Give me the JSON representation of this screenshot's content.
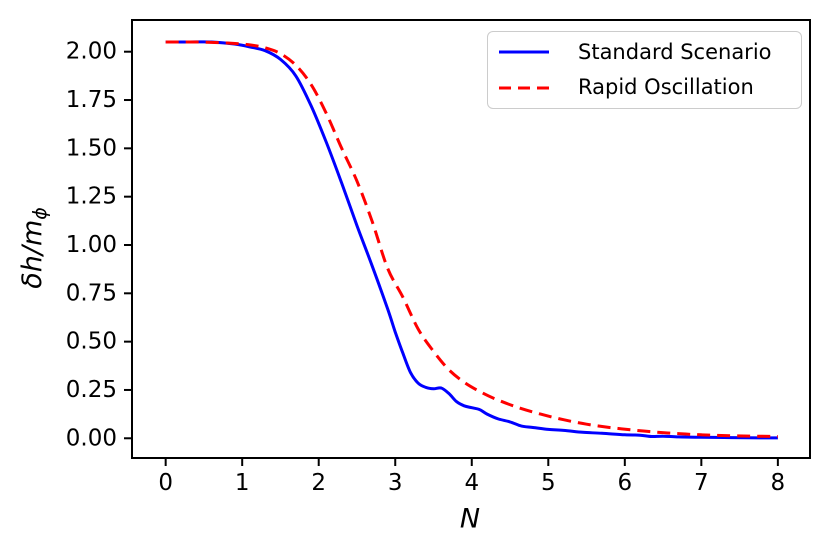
{
  "chart_data": {
    "type": "line",
    "title": "",
    "xlabel": "N",
    "ylabel": "δh/m_ϕ",
    "ylabel_parts": {
      "main": "δh/m",
      "sub": "ϕ"
    },
    "xlim": [
      -0.44,
      8.42
    ],
    "ylim": [
      -0.102,
      2.164
    ],
    "grid": false,
    "axis_color": "#000000",
    "xticks": {
      "values": [
        0,
        1,
        2,
        3,
        4,
        5,
        6,
        7,
        8
      ],
      "labels": [
        "0",
        "1",
        "2",
        "3",
        "4",
        "5",
        "6",
        "7",
        "8"
      ]
    },
    "yticks": {
      "values": [
        0.0,
        0.25,
        0.5,
        0.75,
        1.0,
        1.25,
        1.5,
        1.75,
        2.0
      ],
      "labels": [
        "0.00",
        "0.25",
        "0.50",
        "0.75",
        "1.00",
        "1.25",
        "1.50",
        "1.75",
        "2.00"
      ]
    },
    "legend": {
      "position": "upper right",
      "entries": [
        {
          "label": "Standard Scenario",
          "color": "#0000ff",
          "style": "solid"
        },
        {
          "label": "Rapid Oscillation",
          "color": "#ff0000",
          "style": "dashed"
        }
      ]
    },
    "series": [
      {
        "name": "Standard Scenario",
        "color": "#0000ff",
        "style": "solid",
        "x": [
          0,
          0.3,
          0.6,
          0.9,
          1.1,
          1.3,
          1.5,
          1.7,
          1.9,
          2.1,
          2.3,
          2.5,
          2.7,
          2.9,
          3.0,
          3.1,
          3.2,
          3.3,
          3.4,
          3.5,
          3.6,
          3.7,
          3.8,
          3.9,
          4.0,
          4.1,
          4.2,
          4.35,
          4.5,
          4.65,
          4.8,
          5.0,
          5.2,
          5.45,
          5.7,
          6.0,
          6.2,
          6.35,
          6.5,
          6.7,
          7.0,
          7.3,
          7.6,
          8.0
        ],
        "y": [
          2.05,
          2.05,
          2.05,
          2.04,
          2.025,
          2.005,
          1.96,
          1.875,
          1.72,
          1.53,
          1.32,
          1.1,
          0.89,
          0.67,
          0.55,
          0.44,
          0.34,
          0.285,
          0.263,
          0.256,
          0.26,
          0.232,
          0.19,
          0.168,
          0.158,
          0.149,
          0.125,
          0.1,
          0.085,
          0.063,
          0.056,
          0.046,
          0.041,
          0.031,
          0.026,
          0.018,
          0.016,
          0.009,
          0.011,
          0.007,
          0.005,
          0.004,
          0.003,
          0.002
        ]
      },
      {
        "name": "Rapid Oscillation",
        "color": "#ff0000",
        "style": "dashed",
        "x": [
          0,
          0.4,
          0.8,
          1.1,
          1.3,
          1.5,
          1.7,
          1.9,
          2.1,
          2.3,
          2.5,
          2.7,
          2.9,
          3.1,
          3.3,
          3.5,
          3.7,
          3.9,
          4.1,
          4.3,
          4.6,
          4.9,
          5.2,
          5.5,
          5.8,
          6.1,
          6.4,
          6.7,
          7.0,
          7.4,
          8.0
        ],
        "y": [
          2.05,
          2.05,
          2.045,
          2.035,
          2.02,
          1.99,
          1.93,
          1.83,
          1.68,
          1.5,
          1.33,
          1.12,
          0.88,
          0.73,
          0.565,
          0.45,
          0.355,
          0.29,
          0.243,
          0.205,
          0.16,
          0.125,
          0.096,
          0.073,
          0.056,
          0.043,
          0.032,
          0.024,
          0.018,
          0.013,
          0.009
        ]
      }
    ]
  }
}
